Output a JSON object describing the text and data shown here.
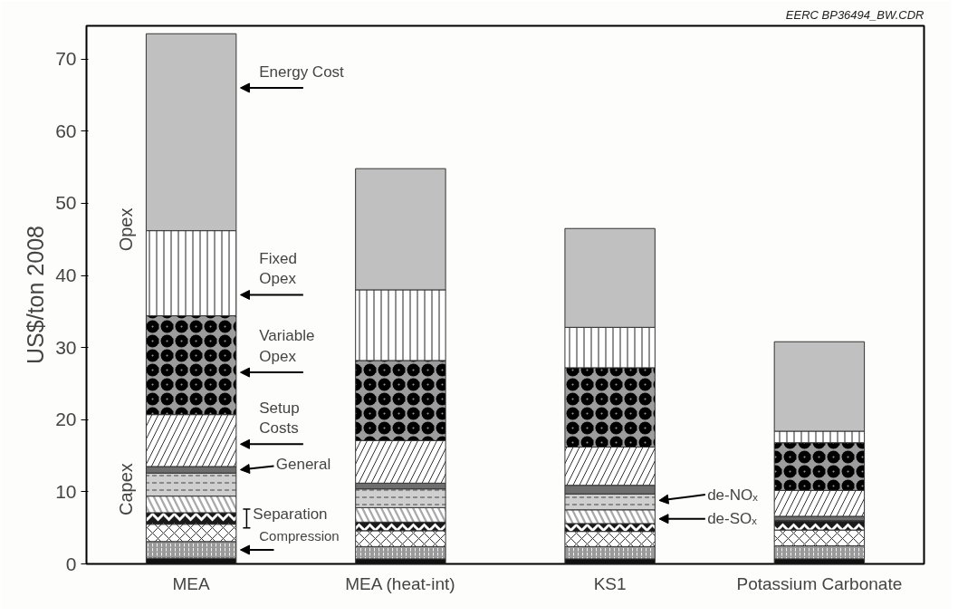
{
  "chart_data": {
    "type": "bar",
    "stacked": true,
    "ylabel": "US$/ton 2008",
    "categories": [
      "MEA",
      "MEA (heat-int)",
      "KS1",
      "Potassium Carbonate"
    ],
    "ylim": [
      0,
      74.6
    ],
    "yticks": [
      0,
      10,
      20,
      30,
      40,
      50,
      60,
      70
    ],
    "grid": false,
    "series": [
      {
        "color": "#111111",
        "values": [
          0.8,
          0.7,
          0.7,
          0.7
        ]
      },
      {
        "color": "#9a9a9a",
        "values": [
          2.3,
          1.7,
          1.7,
          1.8
        ]
      },
      {
        "color": "#ffffff",
        "values": [
          2.4,
          2.2,
          2.1,
          2.2
        ]
      },
      {
        "color": "#1a1a1a",
        "values": [
          1.6,
          1.2,
          1.1,
          1.3
        ]
      },
      {
        "color": "#a8a8a8",
        "values": [
          2.3,
          2.0,
          1.9,
          0
        ]
      },
      {
        "color": "#cfcfcf",
        "values": [
          3.2,
          2.6,
          2.2,
          0
        ]
      },
      {
        "color": "#6e6e6e",
        "values": [
          0.9,
          0.8,
          1.2,
          0.6
        ]
      },
      {
        "color": "#ffffff",
        "values": [
          7.2,
          5.9,
          5.3,
          3.6
        ]
      },
      {
        "color": "#9c9c9c",
        "values": [
          13.7,
          11.1,
          11.0,
          6.6
        ]
      },
      {
        "color": "#ffffff",
        "values": [
          11.8,
          9.8,
          5.6,
          1.6
        ]
      },
      {
        "color": "#c0c0c0",
        "values": [
          27.3,
          16.8,
          13.7,
          12.4
        ]
      }
    ],
    "annotations": [
      "Energy Cost",
      "Fixed\nOpex",
      "Variable\nOpex",
      "Setup\nCosts",
      "General",
      "Separation",
      "Compression",
      "de-NOₓ",
      "de-SOₓ",
      "Opex",
      "Capex",
      "EERC BP36494_BW.CDR"
    ]
  }
}
